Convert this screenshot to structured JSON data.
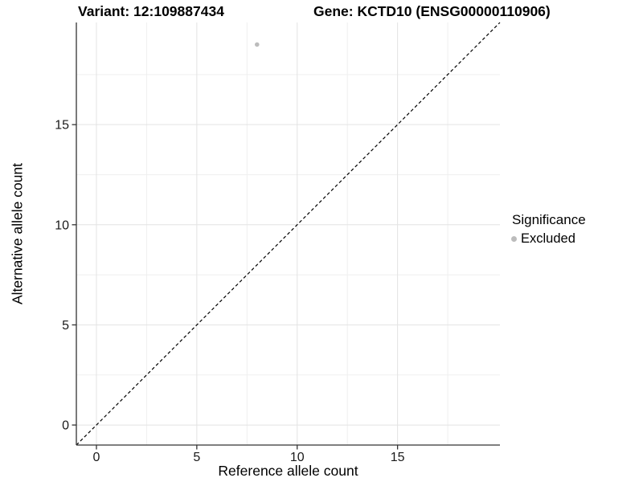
{
  "colors": {
    "background": "#ffffff",
    "grid_major": "#e3e3e3",
    "grid_minor": "#efefef",
    "axis_line": "#333333",
    "tick_mark": "#333333",
    "tick_text": "#1a1a1a",
    "reference_line": "#000000",
    "excluded_point": "#bcbcbc"
  },
  "chart_data": {
    "type": "scatter",
    "title_left": "Variant: 12:109887434",
    "title_right": "Gene: KCTD10 (ENSG00000110906)",
    "xlabel": "Reference allele count",
    "ylabel": "Alternative allele count",
    "xlim": [
      -1,
      20.1
    ],
    "ylim": [
      -1,
      20.1
    ],
    "x_ticks": [
      0,
      5,
      10,
      15
    ],
    "y_ticks": [
      0,
      5,
      10,
      15
    ],
    "x_minor_ticks": [
      2.5,
      7.5,
      12.5,
      17.5
    ],
    "y_minor_ticks": [
      2.5,
      7.5,
      12.5,
      17.5
    ],
    "grid": true,
    "legend_position": "right",
    "legend_title": "Significance",
    "series": [
      {
        "name": "Excluded",
        "color": "#bcbcbc",
        "points": [
          {
            "x": 8,
            "y": 19
          }
        ]
      }
    ],
    "reference_line": {
      "type": "identity y=x",
      "style": "dashed",
      "color": "#000000"
    }
  }
}
